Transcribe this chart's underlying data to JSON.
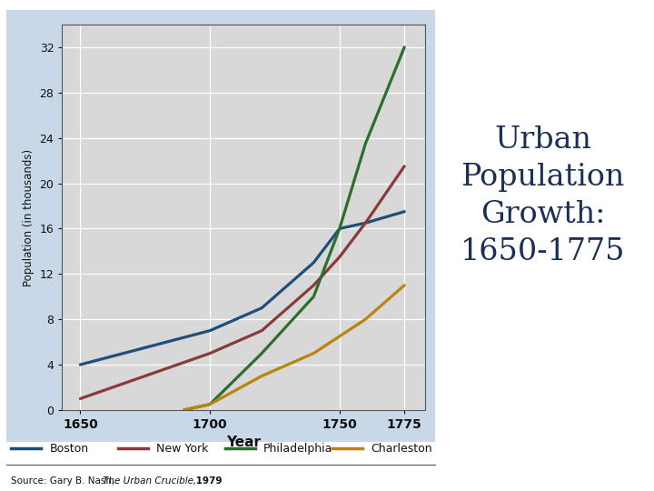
{
  "boston": {
    "years": [
      1650,
      1700,
      1720,
      1740,
      1750,
      1760,
      1775
    ],
    "population": [
      4.0,
      7.0,
      9.0,
      13.0,
      16.0,
      16.5,
      17.5
    ],
    "color": "#1f4e79",
    "label": "Boston"
  },
  "new_york": {
    "years": [
      1650,
      1700,
      1720,
      1740,
      1750,
      1760,
      1775
    ],
    "population": [
      1.0,
      5.0,
      7.0,
      11.0,
      13.5,
      16.5,
      21.5
    ],
    "color": "#8b3a3a",
    "label": "New York"
  },
  "philadelphia": {
    "years": [
      1690,
      1700,
      1720,
      1740,
      1750,
      1760,
      1775
    ],
    "population": [
      0.0,
      0.5,
      5.0,
      10.0,
      16.0,
      23.5,
      32.0
    ],
    "color": "#2d6e2d",
    "label": "Philadelphia"
  },
  "charleston": {
    "years": [
      1690,
      1700,
      1720,
      1740,
      1750,
      1760,
      1775
    ],
    "population": [
      0.0,
      0.5,
      3.0,
      5.0,
      6.5,
      8.0,
      11.0
    ],
    "color": "#b8860b",
    "label": "Charleston"
  },
  "cities": [
    "boston",
    "new_york",
    "philadelphia",
    "charleston"
  ],
  "xlim": [
    1643,
    1783
  ],
  "ylim": [
    0,
    34
  ],
  "yticks": [
    0,
    4,
    8,
    12,
    16,
    20,
    24,
    28,
    32
  ],
  "xticks": [
    1650,
    1700,
    1750,
    1775
  ],
  "xlabel": "Year",
  "ylabel": "Population (in thousands)",
  "chart_bg": "#c8d8e8",
  "plot_bg": "#d8d8d8",
  "outer_bg": "#ffffff",
  "title_text": "Urban\nPopulation\nGrowth:\n1650-1775",
  "title_color": "#1a3057",
  "line_width": 2.3,
  "title_fontsize": 24
}
